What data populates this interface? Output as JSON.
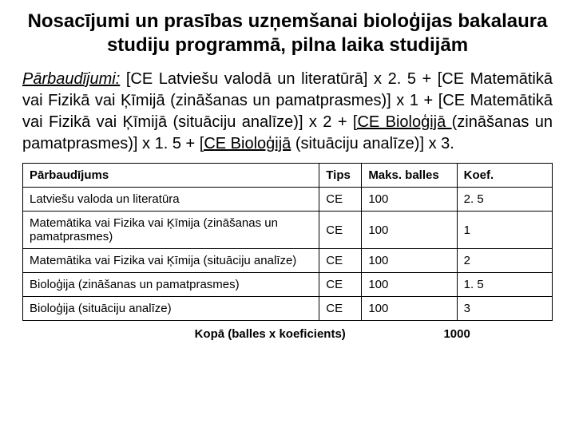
{
  "title": "Nosacījumi un prasības uzņemšanai bioloģijas bakalaura studiju programmā, pilna laika studijām",
  "formula": {
    "label": "Pārbaudījumi:",
    "p1": " [CE Latviešu valodā un literatūrā] x 2. 5 + [CE Matemātikā vai Fizikā vai Ķīmijā (zināšanas un pamatprasmes)] x 1 + [CE Matemātikā vai Fizikā vai Ķīmijā (situāciju analīze)] x 2 + ",
    "u1": "[CE Bioloģijā ",
    "p2": "(zināšanas un pamatprasmes)] x 1. 5 + ",
    "u2": "[CE Bioloģijā",
    "p3": " (situāciju analīze)] x 3."
  },
  "table": {
    "headers": {
      "exam": "Pārbaudījums",
      "type": "Tips",
      "max": "Maks. balles",
      "coef": "Koef."
    },
    "rows": [
      {
        "exam": "Latviešu valoda un literatūra",
        "type": "CE",
        "max": "100",
        "coef": "2. 5"
      },
      {
        "exam": "Matemātika vai Fizika vai Ķīmija (zināšanas un pamatprasmes)",
        "type": "CE",
        "max": "100",
        "coef": "1"
      },
      {
        "exam": "Matemātika vai Fizika vai Ķīmija (situāciju analīze)",
        "type": "CE",
        "max": "100",
        "coef": "2"
      },
      {
        "exam": "Bioloģija (zināšanas un pamatprasmes)",
        "type": "CE",
        "max": "100",
        "coef": "1. 5"
      },
      {
        "exam": "Bioloģija (situāciju analīze)",
        "type": "CE",
        "max": "100",
        "coef": "3"
      }
    ],
    "total_label": "Kopā (balles x koeficients)",
    "total_value": "1000"
  }
}
